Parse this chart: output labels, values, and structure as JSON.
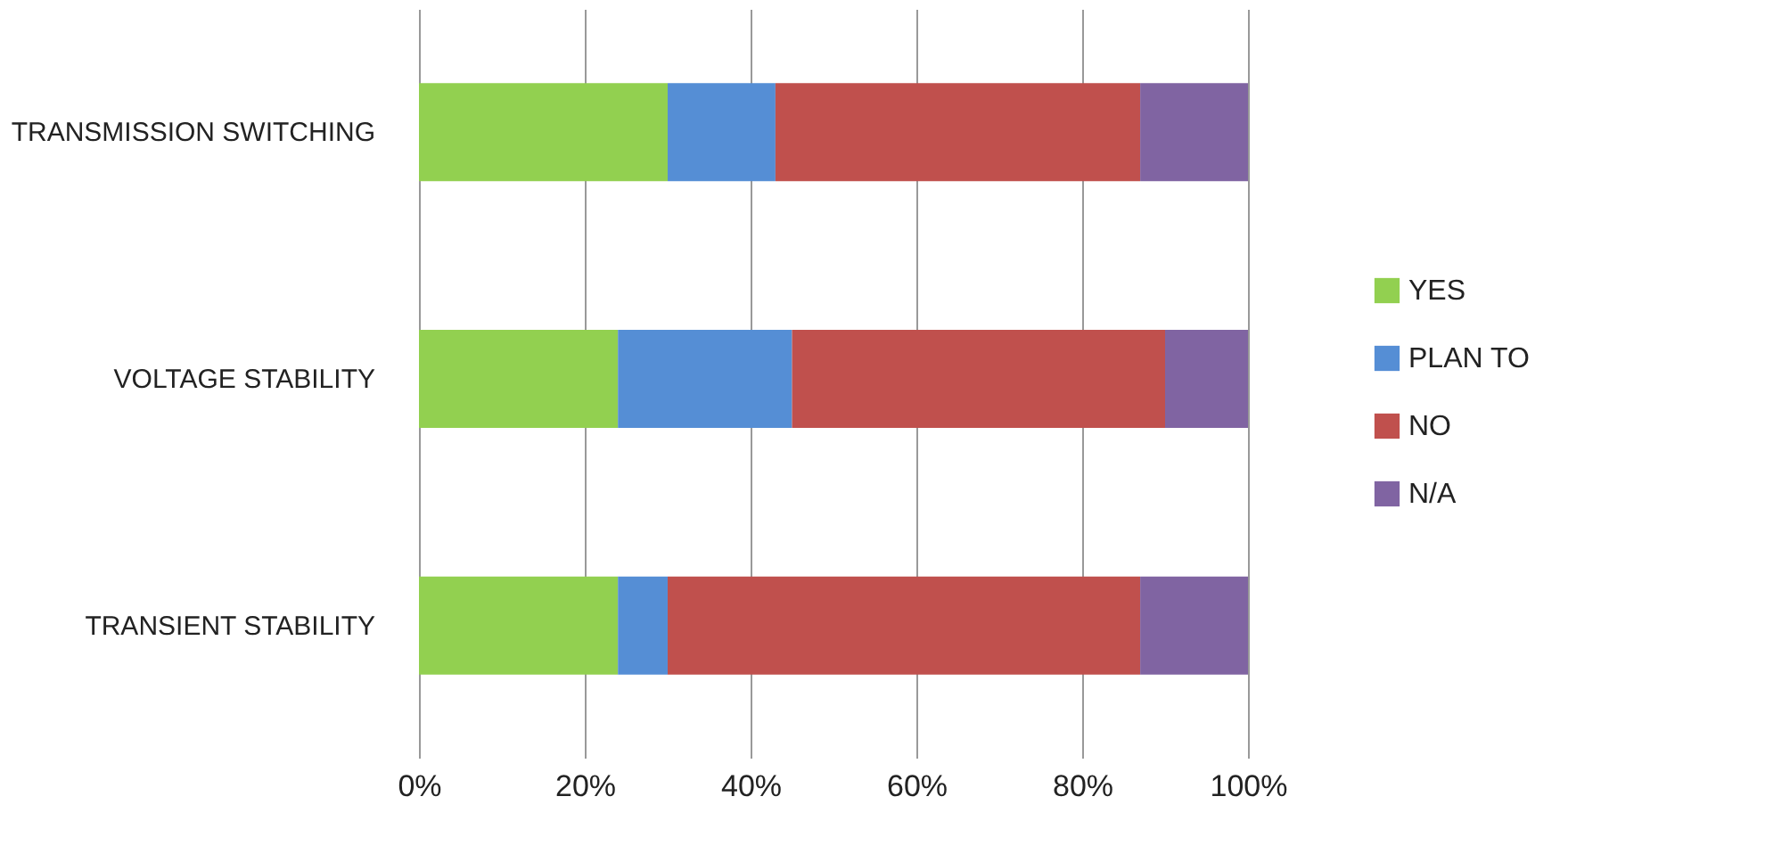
{
  "chart_data": {
    "type": "bar",
    "orientation": "horizontal",
    "stacked": true,
    "categories": [
      "TRANSMISSION SWITCHING",
      "VOLTAGE STABILITY",
      "TRANSIENT STABILITY"
    ],
    "series": [
      {
        "name": "YES",
        "color": "#92d050",
        "values": [
          30,
          24,
          24
        ]
      },
      {
        "name": "PLAN TO",
        "color": "#558ed5",
        "values": [
          13,
          21,
          6
        ]
      },
      {
        "name": "NO",
        "color": "#c0504d",
        "values": [
          44,
          45,
          57
        ]
      },
      {
        "name": "N/A",
        "color": "#8064a2",
        "values": [
          13,
          10,
          13
        ]
      }
    ],
    "xlim": [
      0,
      100
    ],
    "xticks": [
      {
        "value": 0,
        "label": "0%"
      },
      {
        "value": 20,
        "label": "20%"
      },
      {
        "value": 40,
        "label": "40%"
      },
      {
        "value": 60,
        "label": "60%"
      },
      {
        "value": 80,
        "label": "80%"
      },
      {
        "value": 100,
        "label": "100%"
      }
    ],
    "grid": "x",
    "legend": "right"
  }
}
